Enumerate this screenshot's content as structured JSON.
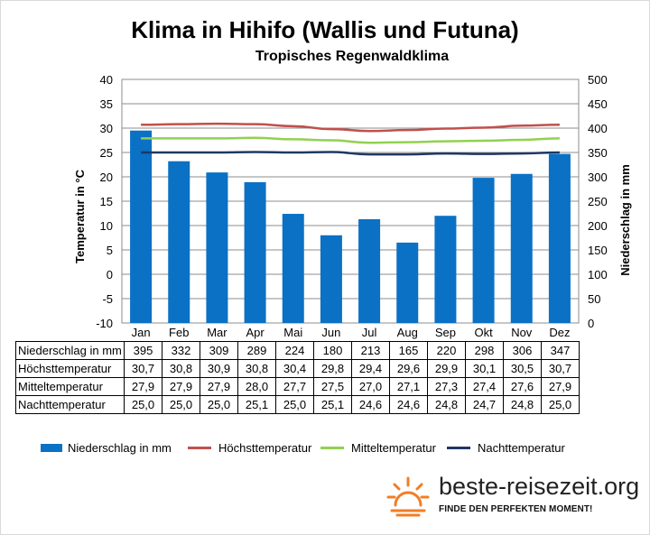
{
  "title": "Klima in Hihifo (Wallis und Futuna)",
  "subtitle": "Tropisches Regenwaldklima",
  "chart_data": {
    "type": "bar",
    "categories": [
      "Jan",
      "Feb",
      "Mar",
      "Apr",
      "Mai",
      "Jun",
      "Jul",
      "Aug",
      "Sep",
      "Okt",
      "Nov",
      "Dez"
    ],
    "y_left": {
      "label": "Temperatur in °C",
      "range": [
        -10,
        40
      ],
      "ticks": [
        -10,
        -5,
        0,
        5,
        10,
        15,
        20,
        25,
        30,
        35,
        40
      ]
    },
    "y_right": {
      "label": "Niederschlag in mm",
      "range": [
        0,
        500
      ],
      "ticks": [
        0,
        50,
        100,
        150,
        200,
        250,
        300,
        350,
        400,
        450,
        500
      ]
    },
    "grid": true,
    "legend_position": "bottom",
    "series": [
      {
        "name": "Niederschlag in mm",
        "kind": "bar",
        "axis": "right",
        "color": "#0a71c5",
        "values": [
          395,
          332,
          309,
          289,
          224,
          180,
          213,
          165,
          220,
          298,
          306,
          347
        ]
      },
      {
        "name": "Höchsttemperatur",
        "kind": "line",
        "axis": "left",
        "color": "#c0504d",
        "values": [
          30.7,
          30.8,
          30.9,
          30.8,
          30.4,
          29.8,
          29.4,
          29.6,
          29.9,
          30.1,
          30.5,
          30.7
        ]
      },
      {
        "name": "Mitteltemperatur",
        "kind": "line",
        "axis": "left",
        "color": "#92d050",
        "values": [
          27.9,
          27.9,
          27.9,
          28.0,
          27.7,
          27.5,
          27.0,
          27.1,
          27.3,
          27.4,
          27.6,
          27.9
        ]
      },
      {
        "name": "Nachttemperatur",
        "kind": "line",
        "axis": "left",
        "color": "#1f3864",
        "values": [
          25.0,
          25.0,
          25.0,
          25.1,
          25.0,
          25.1,
          24.6,
          24.6,
          24.8,
          24.7,
          24.8,
          25.0
        ]
      }
    ]
  },
  "table": {
    "rows": [
      {
        "label": "Niederschlag in mm",
        "values": [
          "395",
          "332",
          "309",
          "289",
          "224",
          "180",
          "213",
          "165",
          "220",
          "298",
          "306",
          "347"
        ]
      },
      {
        "label": "Höchsttemperatur",
        "values": [
          "30,7",
          "30,8",
          "30,9",
          "30,8",
          "30,4",
          "29,8",
          "29,4",
          "29,6",
          "29,9",
          "30,1",
          "30,5",
          "30,7"
        ]
      },
      {
        "label": "Mitteltemperatur",
        "values": [
          "27,9",
          "27,9",
          "27,9",
          "28,0",
          "27,7",
          "27,5",
          "27,0",
          "27,1",
          "27,3",
          "27,4",
          "27,6",
          "27,9"
        ]
      },
      {
        "label": "Nachttemperatur",
        "values": [
          "25,0",
          "25,0",
          "25,0",
          "25,1",
          "25,0",
          "25,1",
          "24,6",
          "24,6",
          "24,8",
          "24,7",
          "24,8",
          "25,0"
        ]
      }
    ]
  },
  "legend": [
    {
      "label": "Niederschlag in mm",
      "color": "#0a71c5"
    },
    {
      "label": "Höchsttemperatur",
      "color": "#c0504d"
    },
    {
      "label": "Mitteltemperatur",
      "color": "#92d050"
    },
    {
      "label": "Nachttemperatur",
      "color": "#1f3864"
    }
  ],
  "brand": {
    "name": "beste-reisezeit.org",
    "tagline": "FINDE DEN PERFEKTEN MOMENT!",
    "logo_icon": "sun-icon",
    "logo_color": "#f07e26"
  }
}
